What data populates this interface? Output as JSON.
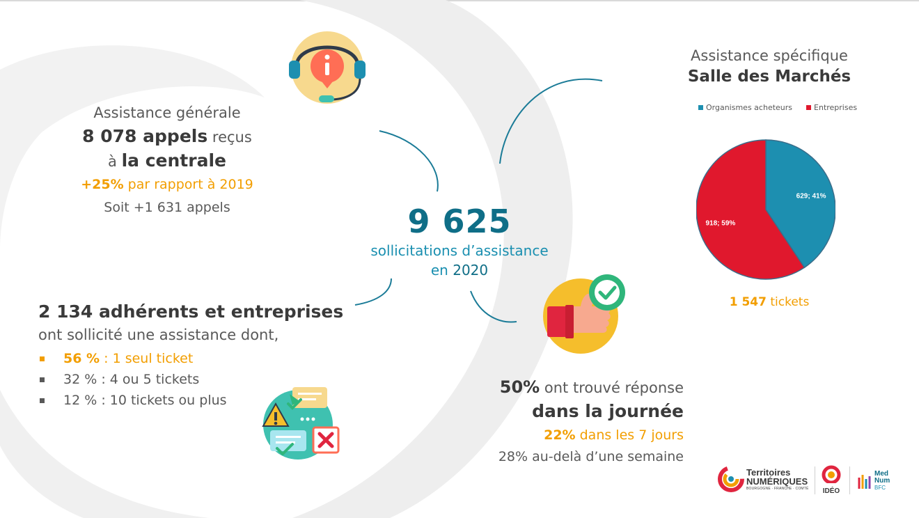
{
  "general": {
    "label": "Assistance générale",
    "calls_value": "8 078 appels",
    "calls_suffix": " reçus",
    "at_prefix": "à ",
    "at_place": "la centrale",
    "growth_value": "+25%",
    "growth_suffix": " par rapport à 2019",
    "extra": "Soit +1 631 appels"
  },
  "center": {
    "total": "9 625",
    "label": "sollicitations d’assistance",
    "year_prefix": "en ",
    "year": "2020"
  },
  "members": {
    "title": "2 134 adhérents et entreprises",
    "lead": "ont sollicité une assistance dont,",
    "items": [
      {
        "value": "56 %",
        "text": " : 1 seul ticket"
      },
      {
        "value": "32 %",
        "text": " : 4 ou 5 tickets"
      },
      {
        "value": "12 %",
        "text": " : 10 tickets ou plus"
      }
    ]
  },
  "response": {
    "pct1": "50%",
    "text1": " ont trouvé réponse",
    "highlight": "dans la journée",
    "pct2": "22%",
    "text2": " dans les 7 jours",
    "line4": "28% au-delà d’une semaine"
  },
  "chart_data": {
    "type": "pie",
    "title": "Assistance spécifique",
    "subtitle": "Salle des Marchés",
    "legend_position": "top",
    "slices": [
      {
        "name": "Organismes acheteurs",
        "value": 629,
        "percent": 41,
        "label": "629; 41%",
        "color": "#1d8fb0"
      },
      {
        "name": "Entreprises",
        "value": 918,
        "percent": 59,
        "label": "918; 59%",
        "color": "#e0182d"
      }
    ],
    "total_value": "1 547",
    "total_suffix": " tickets"
  },
  "logos": {
    "tn_line1": "Territoires",
    "tn_line2": "NUMÉRIQUES",
    "tn_line3": "BOURGOGNE · FRANCHE · COMTÉ",
    "ideo": "IDÉO",
    "med": "Med",
    "num": "Num",
    "bfc": "BFC"
  },
  "colors": {
    "teal": "#0f6e87",
    "orange": "#f29e00",
    "red": "#e0182d",
    "blue": "#1d8fb0"
  }
}
